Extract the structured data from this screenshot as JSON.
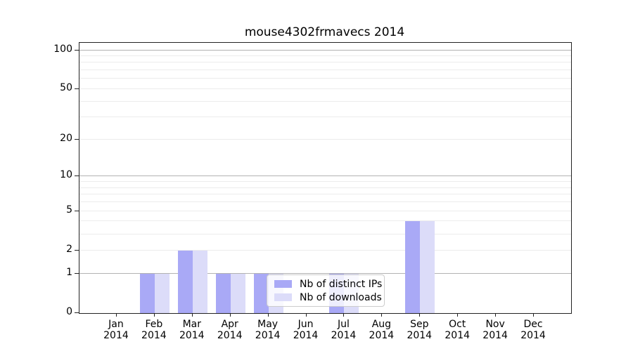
{
  "chart_data": {
    "type": "bar",
    "title": "mouse4302frmavecs 2014",
    "year_label": "2014",
    "categories": [
      "Jan",
      "Feb",
      "Mar",
      "Apr",
      "May",
      "Jun",
      "Jul",
      "Aug",
      "Sep",
      "Oct",
      "Nov",
      "Dec"
    ],
    "series": [
      {
        "name": "Nb of distinct IPs",
        "color": "#a9a9f6",
        "values": [
          0,
          1,
          2,
          1,
          1,
          0,
          1,
          0,
          4,
          0,
          0,
          0
        ]
      },
      {
        "name": "Nb of downloads",
        "color": "#dcdcf9",
        "values": [
          0,
          1,
          2,
          1,
          1,
          0,
          1,
          0,
          4,
          0,
          0,
          0
        ]
      }
    ],
    "yscale": "log1p",
    "yticks": [
      0,
      1,
      2,
      5,
      10,
      20,
      50,
      100
    ],
    "major_gridlines": [
      1,
      10,
      100
    ],
    "minor_gridlines": [
      2,
      3,
      4,
      5,
      6,
      7,
      8,
      9,
      20,
      30,
      40,
      50,
      60,
      70,
      80,
      90
    ],
    "ylim": [
      0,
      114
    ],
    "xlabel": "",
    "ylabel": "",
    "grid": "on",
    "legend_position": "lower center"
  }
}
